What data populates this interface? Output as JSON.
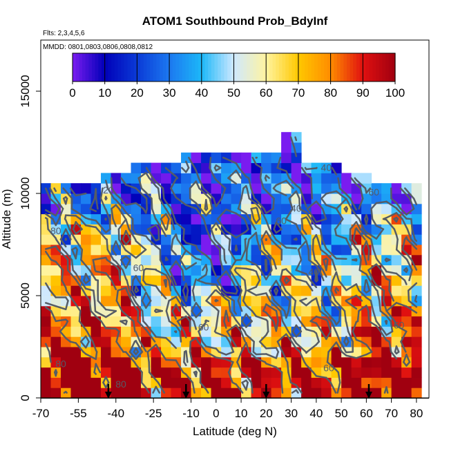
{
  "chart_data": {
    "type": "heatmap",
    "title": "ATOM1 Southbound Prob_BdyInf",
    "subtitle_flts": "Flts: 2,3,4,5,6",
    "subtitle_mmdd": "MMDD: 0801,0803,0806,0808,0812",
    "xlabel": "Latitude (deg N)",
    "ylabel": "Altitude (m)",
    "xlim": [
      -70,
      85
    ],
    "ylim": [
      0,
      17500
    ],
    "x_ticks": [
      -70,
      -55,
      -40,
      -25,
      -10,
      0,
      10,
      20,
      30,
      40,
      50,
      60,
      70,
      80
    ],
    "y_ticks": [
      0,
      5000,
      10000,
      15000
    ],
    "colorbar": {
      "min": 0,
      "max": 100,
      "ticks": [
        0,
        10,
        20,
        30,
        40,
        50,
        60,
        70,
        80,
        90,
        100
      ],
      "colors": [
        "#7a1cf0",
        "#0000b8",
        "#0a3ad6",
        "#1c78f0",
        "#1cb8f8",
        "#cfe8ff",
        "#fff4a0",
        "#ffc800",
        "#ff8c00",
        "#e01010",
        "#a00010"
      ]
    },
    "lat_bins": [
      -68,
      -64,
      -60,
      -56,
      -52,
      -48,
      -44,
      -40,
      -36,
      -32,
      -28,
      -24,
      -20,
      -16,
      -12,
      -8,
      -4,
      0,
      4,
      8,
      12,
      16,
      20,
      24,
      28,
      32,
      36,
      40,
      44,
      48,
      52,
      56,
      60,
      64,
      68,
      72,
      76,
      80
    ],
    "alt_bins": [
      250,
      750,
      1250,
      1750,
      2250,
      2750,
      3250,
      3750,
      4250,
      4750,
      5250,
      5750,
      6250,
      6750,
      7250,
      7750,
      8250,
      8750,
      9250,
      9750,
      10250,
      10750,
      11250,
      11750,
      12250,
      12750,
      13250
    ],
    "contour_levels": [
      20,
      40,
      60,
      80
    ],
    "contour_labels": [
      {
        "text": "20",
        "x": -43,
        "y": 10000
      },
      {
        "text": "80",
        "x": -64,
        "y": 8000
      },
      {
        "text": "60",
        "x": -31,
        "y": 6200
      },
      {
        "text": "40",
        "x": 44,
        "y": 11100
      },
      {
        "text": "60",
        "x": 63,
        "y": 9900
      },
      {
        "text": "40",
        "x": 32,
        "y": 9100
      },
      {
        "text": "60",
        "x": 73,
        "y": 3400
      },
      {
        "text": "60",
        "x": 26,
        "y": 8500
      },
      {
        "text": "40",
        "x": 39,
        "y": 6000
      },
      {
        "text": "60",
        "x": 45,
        "y": 1300
      },
      {
        "text": "80",
        "x": -62,
        "y": 1500
      },
      {
        "text": "80",
        "x": -38,
        "y": 500
      },
      {
        "text": "60",
        "x": -5,
        "y": 3300
      }
    ],
    "flight_arrows_lat": [
      -43,
      -12,
      20,
      61
    ]
  }
}
